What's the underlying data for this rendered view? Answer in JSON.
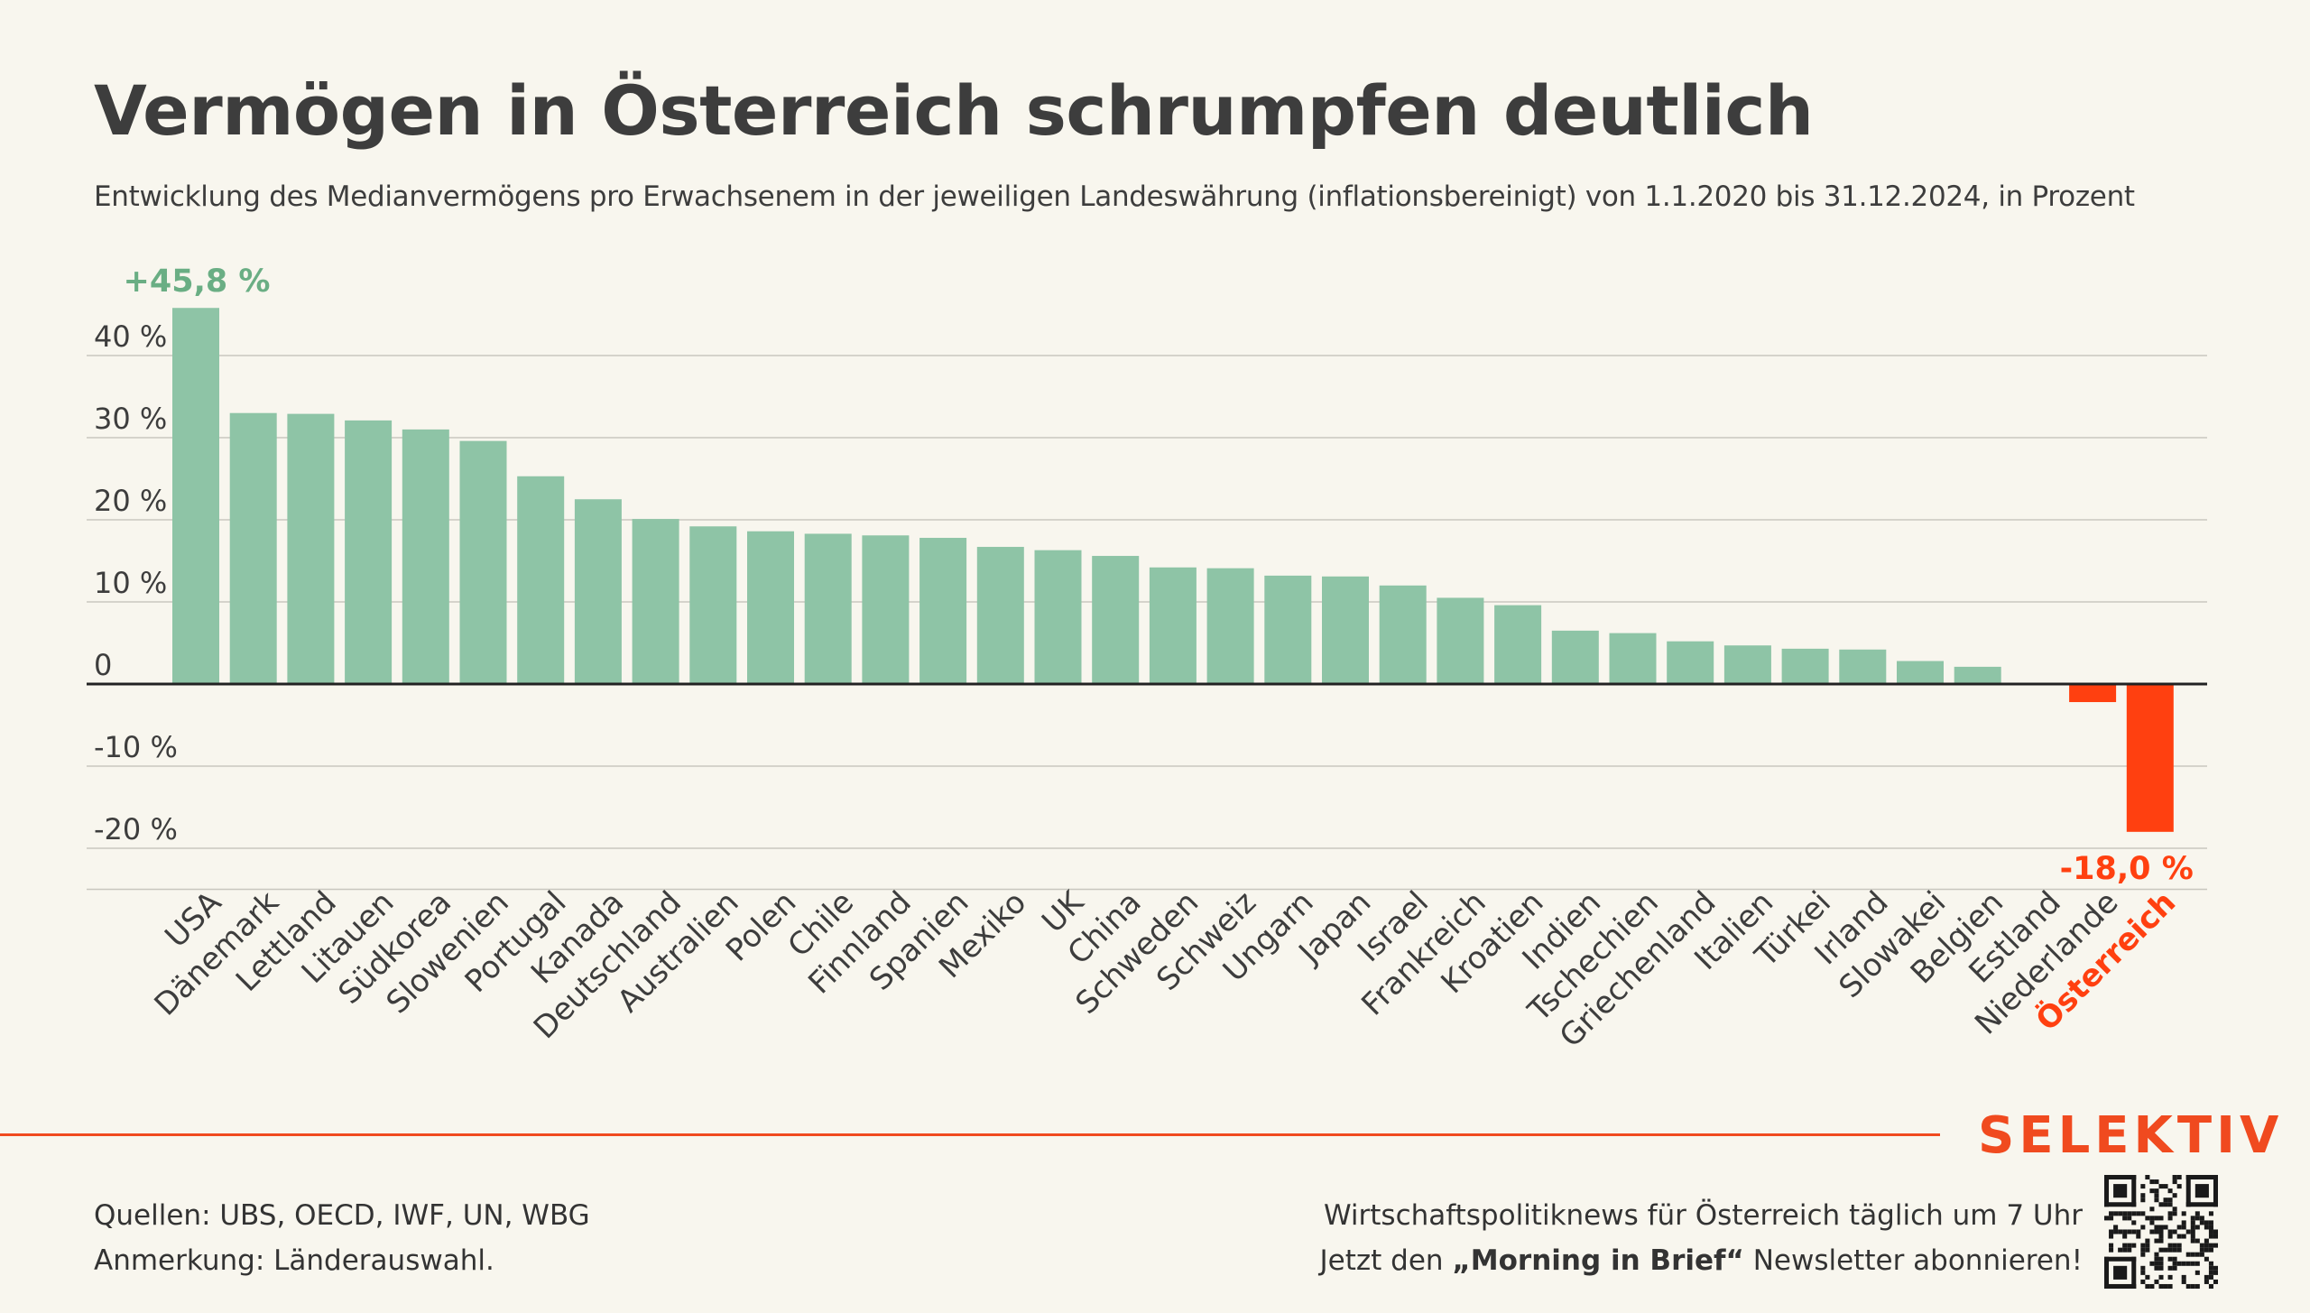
{
  "title": "Vermögen in Österreich schrumpfen deutlich",
  "subtitle": "Entwicklung des Medianvermögens pro Erwachsenem in der jeweiligen Landeswährung (inflationsbereinigt) von 1.1.2020 bis 31.12.2024, in Prozent",
  "brand": "SELEKTIV",
  "footer": {
    "sources": "Quellen: UBS, OECD, IWF, UN, WBG",
    "note": "Anmerkung: Länderauswahl.",
    "promo_line1": "Wirtschaftspolitiknews für Österreich täglich um 7 Uhr",
    "promo_line2_pre": "Jetzt den ",
    "promo_line2_bold": "„Morning in Brief“",
    "promo_line2_post": " Newsletter abonnieren!"
  },
  "qr_icon": "qr-code-icon",
  "colors": {
    "positive": "#8ec4a6",
    "negative": "#ff4010",
    "positive_label": "#6aae84",
    "negative_label": "#ff4010",
    "brand": "#f04a1f",
    "background": "#f8f6ee"
  },
  "chart_data": {
    "type": "bar",
    "categories": [
      "USA",
      "Dänemark",
      "Lettland",
      "Litauen",
      "Südkorea",
      "Slowenien",
      "Portugal",
      "Kanada",
      "Deutschland",
      "Australien",
      "Polen",
      "Chile",
      "Finnland",
      "Spanien",
      "Mexiko",
      "UK",
      "China",
      "Schweden",
      "Schweiz",
      "Ungarn",
      "Japan",
      "Israel",
      "Frankreich",
      "Kroatien",
      "Indien",
      "Tschechien",
      "Griechenland",
      "Italien",
      "Türkei",
      "Irland",
      "Slowakei",
      "Belgien",
      "Estland",
      "Niederlande",
      "Österreich"
    ],
    "values": [
      45.8,
      33.0,
      32.9,
      32.1,
      31.0,
      29.6,
      25.3,
      22.5,
      20.1,
      19.2,
      18.6,
      18.3,
      18.1,
      17.8,
      16.7,
      16.3,
      15.6,
      14.2,
      14.1,
      13.2,
      13.1,
      12.0,
      10.5,
      9.6,
      6.5,
      6.2,
      5.2,
      4.7,
      4.3,
      4.2,
      2.8,
      2.1,
      0.0,
      -2.2,
      -18.0
    ],
    "highlight": "Österreich",
    "yticks": [
      40,
      30,
      20,
      10,
      0,
      -10,
      -20
    ],
    "ytick_labels": [
      "40 %",
      "30 %",
      "20 %",
      "10 %",
      "0",
      "-10 %",
      "-20 %"
    ],
    "ylim": [
      -25,
      46
    ],
    "annotations": [
      {
        "category": "USA",
        "text": "+45,8 %"
      },
      {
        "category": "Österreich",
        "text": "-18,0 %"
      }
    ],
    "grid": true,
    "xlabel": "",
    "ylabel": ""
  }
}
